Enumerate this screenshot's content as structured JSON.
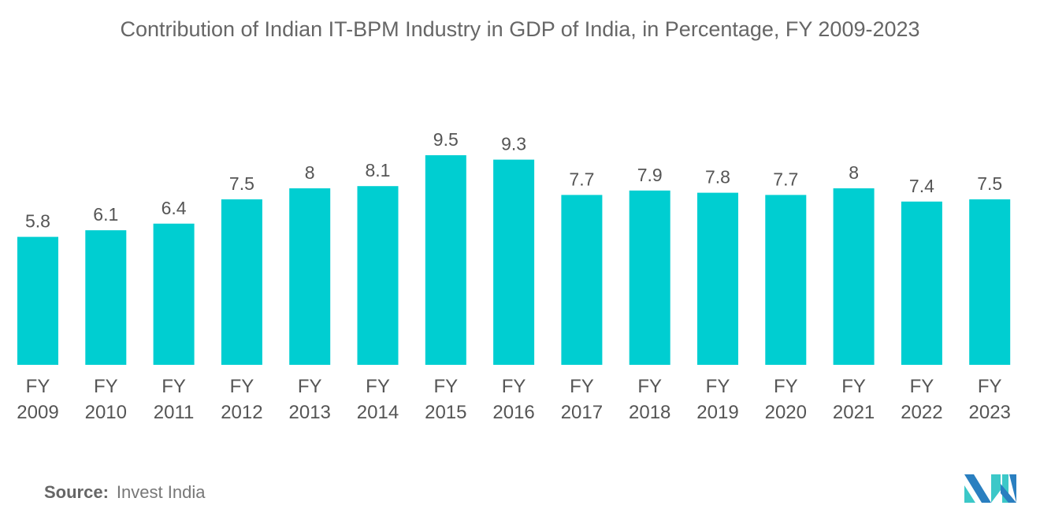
{
  "title": "Contribution of Indian IT-BPM Industry in GDP of India, in Percentage, FY 2009-2023",
  "source": {
    "label": "Source:",
    "value": "Invest India"
  },
  "colors": {
    "bar": "#00CED1",
    "text": "#555555"
  },
  "chart_data": {
    "type": "bar",
    "title": "Contribution of Indian IT-BPM Industry in GDP of India, in Percentage, FY 2009-2023",
    "categories": [
      "FY 2009",
      "FY 2010",
      "FY 2011",
      "FY 2012",
      "FY 2013",
      "FY 2014",
      "FY 2015",
      "FY 2016",
      "FY 2017",
      "FY 2018",
      "FY 2019",
      "FY 2020",
      "FY 2021",
      "FY 2022",
      "FY 2023"
    ],
    "values": [
      5.8,
      6.1,
      6.4,
      7.5,
      8,
      8.1,
      9.5,
      9.3,
      7.7,
      7.9,
      7.8,
      7.7,
      8,
      7.4,
      7.5
    ],
    "xlabel": "",
    "ylabel": "",
    "ylim": [
      0,
      9.5
    ],
    "grid": false,
    "data_labels": true
  }
}
